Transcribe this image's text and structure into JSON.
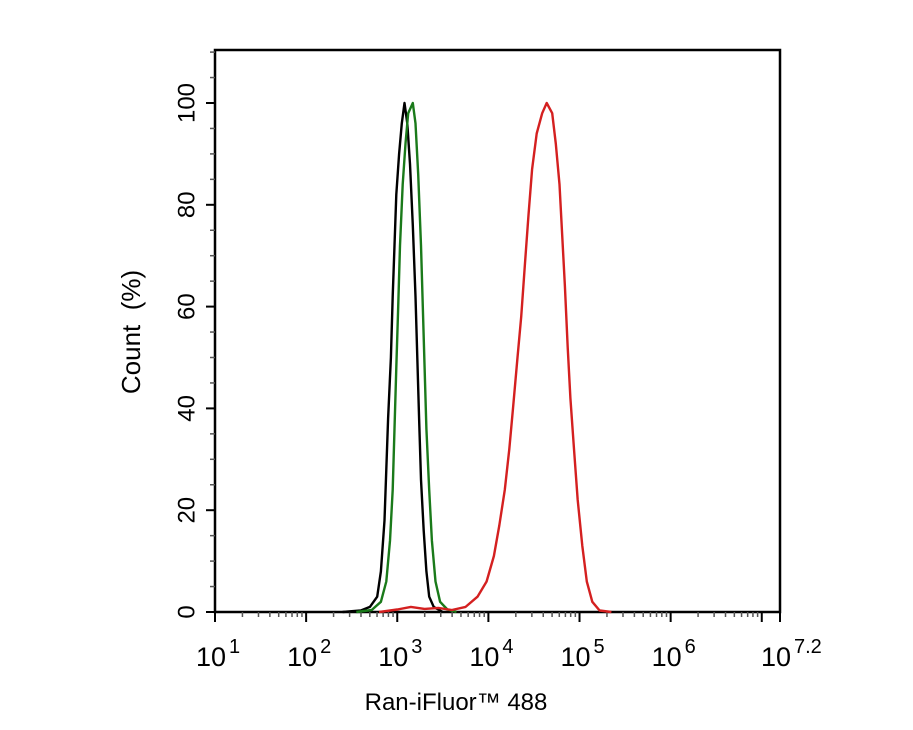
{
  "chart_data": {
    "type": "line",
    "title": "",
    "xlabel": "Ran-iFluor™ 488",
    "ylabel": "Count  (%)",
    "xscale": "log",
    "xlim_log10": [
      1,
      7.2
    ],
    "ylim": [
      0,
      110
    ],
    "x_tick_labels": [
      {
        "base": "10",
        "exp": "1",
        "log": 1
      },
      {
        "base": "10",
        "exp": "2",
        "log": 2
      },
      {
        "base": "10",
        "exp": "3",
        "log": 3
      },
      {
        "base": "10",
        "exp": "4",
        "log": 4
      },
      {
        "base": "10",
        "exp": "5",
        "log": 5
      },
      {
        "base": "10",
        "exp": "6",
        "log": 6
      },
      {
        "base": "10",
        "exp": "7.2",
        "log": 7.2
      }
    ],
    "y_ticks": [
      0,
      20,
      40,
      60,
      80,
      100
    ],
    "grid": false,
    "legend": null,
    "series": [
      {
        "name": "black",
        "color": "#000000",
        "points_log10_count": [
          [
            2.4,
            0
          ],
          [
            2.6,
            0.3
          ],
          [
            2.7,
            1
          ],
          [
            2.78,
            3
          ],
          [
            2.82,
            8
          ],
          [
            2.86,
            18
          ],
          [
            2.88,
            28
          ],
          [
            2.9,
            38
          ],
          [
            2.93,
            50
          ],
          [
            2.95,
            62
          ],
          [
            2.97,
            72
          ],
          [
            2.99,
            82
          ],
          [
            3.02,
            90
          ],
          [
            3.05,
            96
          ],
          [
            3.08,
            100
          ],
          [
            3.11,
            96
          ],
          [
            3.14,
            88
          ],
          [
            3.17,
            76
          ],
          [
            3.2,
            62
          ],
          [
            3.22,
            50
          ],
          [
            3.24,
            38
          ],
          [
            3.26,
            26
          ],
          [
            3.29,
            16
          ],
          [
            3.32,
            8
          ],
          [
            3.35,
            3
          ],
          [
            3.4,
            1
          ],
          [
            3.5,
            0
          ]
        ]
      },
      {
        "name": "green",
        "color": "#1a7a1a",
        "points_log10_count": [
          [
            2.55,
            0
          ],
          [
            2.72,
            0.4
          ],
          [
            2.82,
            2
          ],
          [
            2.88,
            6
          ],
          [
            2.92,
            14
          ],
          [
            2.95,
            24
          ],
          [
            2.97,
            36
          ],
          [
            2.99,
            48
          ],
          [
            3.01,
            60
          ],
          [
            3.03,
            72
          ],
          [
            3.06,
            84
          ],
          [
            3.09,
            92
          ],
          [
            3.12,
            98
          ],
          [
            3.17,
            100
          ],
          [
            3.2,
            96
          ],
          [
            3.23,
            86
          ],
          [
            3.26,
            72
          ],
          [
            3.28,
            60
          ],
          [
            3.3,
            48
          ],
          [
            3.32,
            36
          ],
          [
            3.35,
            24
          ],
          [
            3.38,
            14
          ],
          [
            3.42,
            6
          ],
          [
            3.47,
            2
          ],
          [
            3.55,
            0.5
          ],
          [
            3.65,
            0
          ]
        ]
      },
      {
        "name": "red",
        "color": "#d42020",
        "points_log10_count": [
          [
            2.8,
            0
          ],
          [
            3.0,
            0.5
          ],
          [
            3.15,
            1
          ],
          [
            3.3,
            0.6
          ],
          [
            3.45,
            0.8
          ],
          [
            3.6,
            0.4
          ],
          [
            3.75,
            1
          ],
          [
            3.88,
            3
          ],
          [
            3.98,
            6
          ],
          [
            4.06,
            11
          ],
          [
            4.12,
            17
          ],
          [
            4.18,
            24
          ],
          [
            4.23,
            32
          ],
          [
            4.27,
            40
          ],
          [
            4.32,
            50
          ],
          [
            4.36,
            58
          ],
          [
            4.4,
            68
          ],
          [
            4.44,
            78
          ],
          [
            4.48,
            87
          ],
          [
            4.53,
            94
          ],
          [
            4.59,
            98
          ],
          [
            4.64,
            100
          ],
          [
            4.7,
            98
          ],
          [
            4.74,
            92
          ],
          [
            4.78,
            84
          ],
          [
            4.81,
            74
          ],
          [
            4.84,
            64
          ],
          [
            4.87,
            52
          ],
          [
            4.9,
            42
          ],
          [
            4.94,
            32
          ],
          [
            4.98,
            22
          ],
          [
            5.03,
            13
          ],
          [
            5.08,
            6
          ],
          [
            5.14,
            2
          ],
          [
            5.22,
            0.3
          ],
          [
            5.35,
            0
          ]
        ]
      }
    ]
  }
}
